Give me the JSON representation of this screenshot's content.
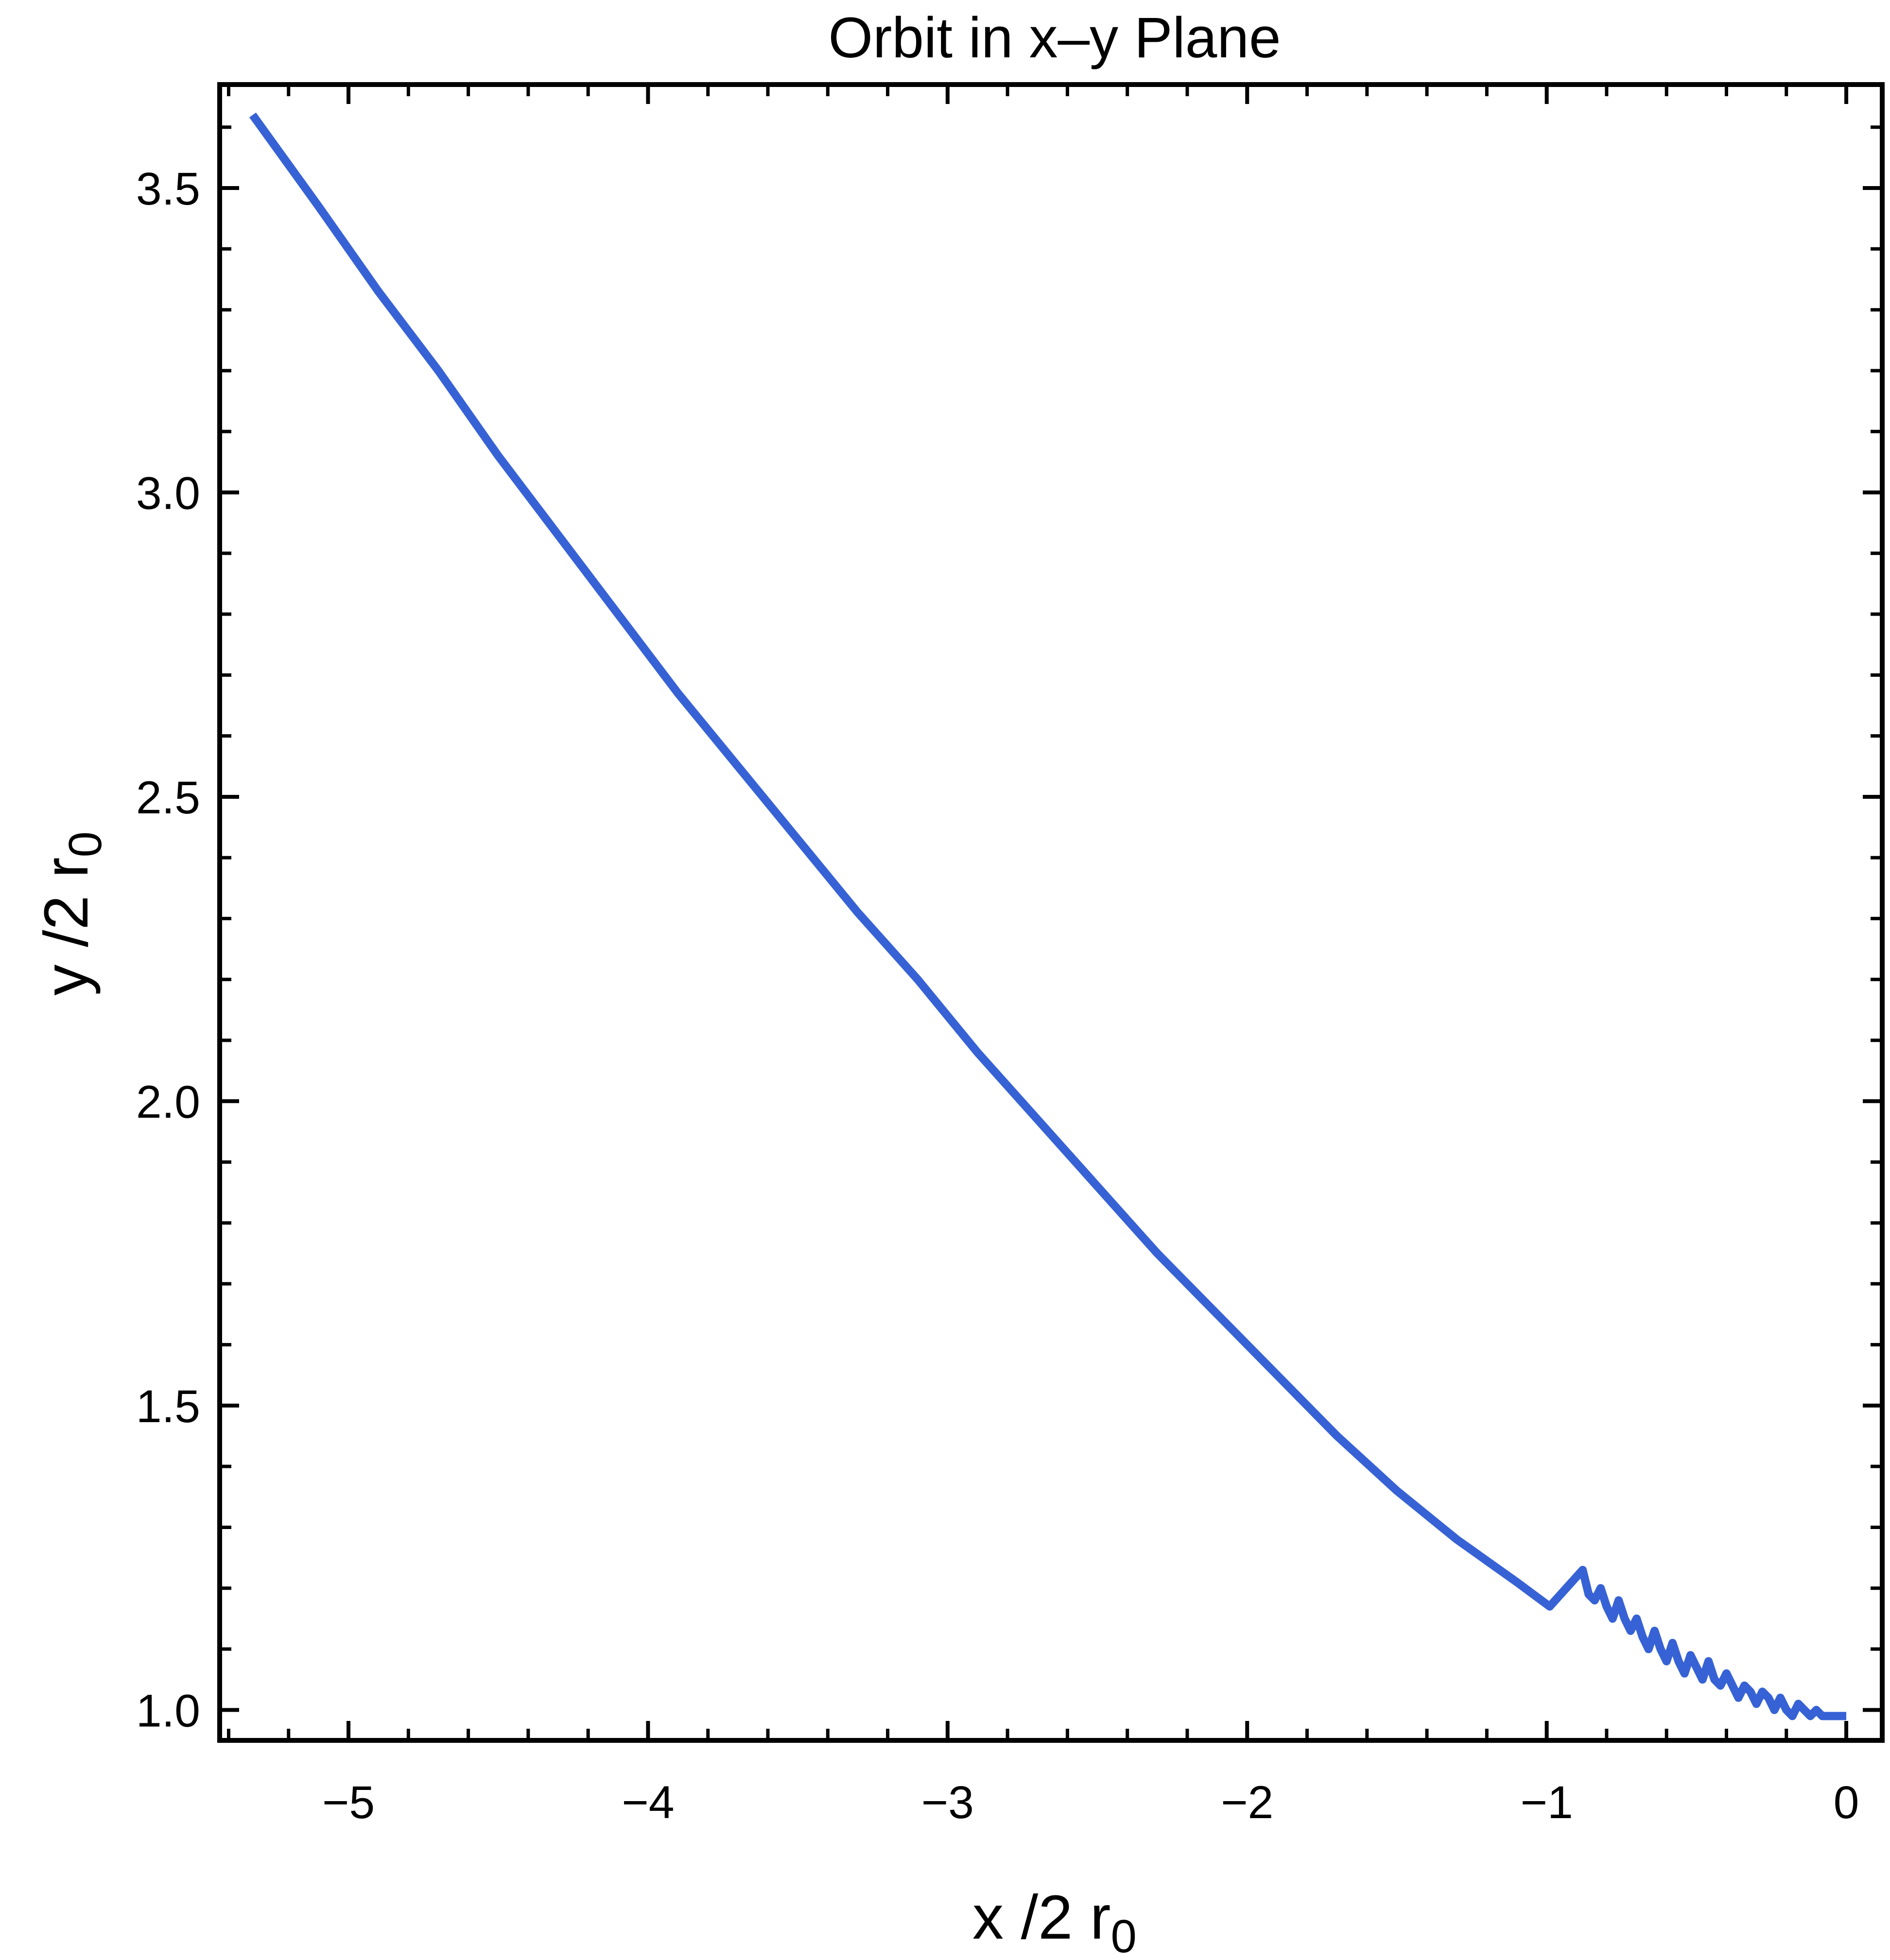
{
  "chart_data": {
    "type": "line",
    "title": "Orbit in x–y Plane",
    "xlabel": "x /2 r",
    "xlabel_sub": "0",
    "ylabel": "y /2 r",
    "ylabel_sub": "0",
    "xlim": [
      -5.43,
      0.12
    ],
    "ylim": [
      0.95,
      3.67
    ],
    "xticks": [
      -5,
      -4,
      -3,
      -2,
      -1,
      0
    ],
    "xtick_labels": [
      "−5",
      "−4",
      "−3",
      "−2",
      "−1",
      "0"
    ],
    "yticks": [
      1.0,
      1.5,
      2.0,
      2.5,
      3.0,
      3.5
    ],
    "ytick_labels": [
      "1.0",
      "1.5",
      "2.0",
      "2.5",
      "3.0",
      "3.5"
    ],
    "grid": false,
    "frame": true,
    "colors": {
      "line": "#3762d5"
    },
    "series": [
      {
        "x": [
          -5.32,
          -5.1,
          -4.9,
          -4.7,
          -4.5,
          -4.3,
          -4.1,
          -3.9,
          -3.7,
          -3.5,
          -3.3,
          -3.1,
          -2.9,
          -2.7,
          -2.5,
          -2.3,
          -2.1,
          -1.9,
          -1.7,
          -1.5,
          -1.3,
          -1.1,
          -0.99,
          -0.88,
          -0.86,
          -0.84,
          -0.82,
          -0.8,
          -0.78,
          -0.76,
          -0.74,
          -0.72,
          -0.7,
          -0.68,
          -0.66,
          -0.64,
          -0.62,
          -0.6,
          -0.58,
          -0.56,
          -0.54,
          -0.52,
          -0.5,
          -0.48,
          -0.46,
          -0.44,
          -0.42,
          -0.4,
          -0.38,
          -0.36,
          -0.34,
          -0.32,
          -0.3,
          -0.28,
          -0.26,
          -0.24,
          -0.22,
          -0.2,
          -0.18,
          -0.16,
          -0.14,
          -0.12,
          -0.1,
          -0.08,
          -0.06,
          -0.04,
          -0.02,
          0.0
        ],
        "y": [
          3.62,
          3.47,
          3.33,
          3.2,
          3.06,
          2.93,
          2.8,
          2.67,
          2.55,
          2.43,
          2.31,
          2.2,
          2.08,
          1.97,
          1.86,
          1.75,
          1.65,
          1.55,
          1.45,
          1.36,
          1.28,
          1.21,
          1.17,
          1.23,
          1.19,
          1.18,
          1.2,
          1.17,
          1.15,
          1.18,
          1.15,
          1.13,
          1.15,
          1.12,
          1.1,
          1.13,
          1.1,
          1.08,
          1.11,
          1.08,
          1.06,
          1.09,
          1.07,
          1.05,
          1.08,
          1.05,
          1.04,
          1.06,
          1.04,
          1.02,
          1.04,
          1.03,
          1.01,
          1.03,
          1.02,
          1.0,
          1.02,
          1.0,
          0.99,
          1.01,
          1.0,
          0.99,
          1.0,
          0.99,
          0.99,
          0.99,
          0.99,
          0.99
        ]
      }
    ]
  }
}
